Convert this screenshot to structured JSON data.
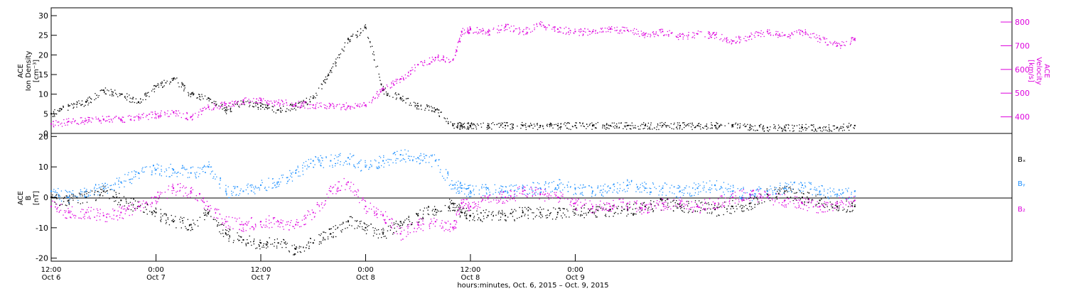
{
  "chart_data": [
    {
      "type": "scatter",
      "panel": "density-velocity",
      "ylabel": [
        "ACE",
        "Ion Density",
        "[cm⁻³]"
      ],
      "y2label": [
        "ACE",
        "Velocity",
        "[km/s]"
      ],
      "ylim": [
        0,
        32
      ],
      "y2lim": [
        330,
        860
      ],
      "yticks": [
        0,
        5,
        10,
        15,
        20,
        25,
        30
      ],
      "y2ticks": [
        400,
        500,
        600,
        700,
        800
      ],
      "series": [
        {
          "axis": "left",
          "color": "#000000",
          "x": [
            0,
            2,
            4,
            6,
            8,
            10,
            12,
            14,
            16,
            18,
            20,
            22,
            24,
            26,
            28,
            30,
            32,
            34,
            36,
            38,
            40,
            42,
            44,
            46,
            47,
            48,
            50,
            52,
            54,
            56,
            58,
            60,
            62,
            64,
            66,
            68,
            70,
            72,
            74,
            76,
            78,
            80,
            82,
            84,
            86,
            88,
            90,
            92
          ],
          "values": [
            5,
            7,
            8,
            11,
            10,
            8,
            12,
            14,
            10,
            9,
            6,
            8,
            7,
            6,
            7,
            9,
            16,
            24,
            27,
            11,
            9,
            7,
            6,
            2,
            2,
            2,
            2,
            2,
            2,
            2,
            2,
            2,
            2,
            2,
            2,
            2,
            2,
            2,
            2,
            2,
            2,
            1.5,
            1.5,
            1.5,
            1.5,
            1.5,
            1.5,
            2
          ]
        },
        {
          "axis": "right",
          "color": "#dd00dd",
          "x": [
            0,
            2,
            4,
            6,
            8,
            10,
            12,
            14,
            16,
            18,
            20,
            22,
            24,
            26,
            28,
            30,
            32,
            34,
            36,
            38,
            40,
            42,
            44,
            46,
            47,
            48,
            50,
            52,
            54,
            56,
            58,
            60,
            62,
            64,
            66,
            68,
            70,
            72,
            74,
            76,
            78,
            80,
            82,
            84,
            86,
            88,
            90,
            92
          ],
          "values": [
            370,
            380,
            385,
            390,
            390,
            400,
            410,
            420,
            400,
            440,
            455,
            470,
            470,
            460,
            455,
            450,
            450,
            445,
            450,
            520,
            560,
            620,
            650,
            640,
            760,
            770,
            760,
            780,
            760,
            790,
            770,
            760,
            760,
            770,
            765,
            750,
            760,
            740,
            750,
            745,
            720,
            740,
            760,
            745,
            760,
            730,
            700,
            730
          ]
        }
      ]
    },
    {
      "type": "scatter",
      "panel": "magnetic-field",
      "ylabel": [
        "ACE",
        "B",
        "[nT]"
      ],
      "ylim": [
        -21,
        21
      ],
      "yticks": [
        -20,
        -10,
        0,
        10,
        20
      ],
      "legend": [
        "Bₓ",
        "Bᵧ",
        "B₂"
      ],
      "series": [
        {
          "name": "Bx",
          "color": "#000000",
          "x": [
            0,
            2,
            4,
            6,
            8,
            10,
            12,
            14,
            16,
            18,
            20,
            22,
            24,
            26,
            28,
            30,
            32,
            34,
            36,
            38,
            40,
            42,
            44,
            46,
            47,
            48,
            50,
            52,
            54,
            56,
            58,
            60,
            62,
            64,
            66,
            68,
            70,
            72,
            74,
            76,
            78,
            80,
            82,
            84,
            86,
            88,
            90,
            92
          ],
          "values": [
            0,
            -1,
            0,
            2,
            -1,
            -3,
            -5,
            -8,
            -9,
            -5,
            -12,
            -14,
            -15,
            -15,
            -17,
            -15,
            -12,
            -8,
            -10,
            -12,
            -8,
            -6,
            -4,
            -2,
            -5,
            -6,
            -6,
            -6,
            -5,
            -5,
            -5,
            -4,
            -5,
            -4,
            -4,
            -3,
            -2,
            -3,
            -3,
            -4,
            -3,
            -2,
            1,
            2,
            0,
            -1,
            -3,
            -3
          ]
        },
        {
          "name": "By",
          "color": "#1e90ff",
          "x": [
            0,
            2,
            4,
            6,
            8,
            10,
            12,
            14,
            16,
            18,
            20,
            22,
            24,
            26,
            28,
            30,
            32,
            34,
            36,
            38,
            40,
            42,
            44,
            46,
            47,
            48,
            50,
            52,
            54,
            56,
            58,
            60,
            62,
            64,
            66,
            68,
            70,
            72,
            74,
            76,
            78,
            80,
            82,
            84,
            86,
            88,
            90,
            92
          ],
          "values": [
            2,
            0,
            2,
            3,
            5,
            8,
            9,
            9,
            8,
            10,
            2,
            2,
            4,
            5,
            8,
            12,
            12,
            13,
            10,
            12,
            14,
            13,
            12,
            4,
            3,
            2,
            3,
            2,
            3,
            3,
            4,
            3,
            2,
            3,
            4,
            3,
            3,
            2,
            3,
            4,
            2,
            1,
            2,
            3,
            4,
            2,
            1,
            2
          ]
        },
        {
          "name": "Bz",
          "color": "#dd00dd",
          "x": [
            0,
            2,
            4,
            6,
            8,
            10,
            12,
            14,
            16,
            18,
            20,
            22,
            24,
            26,
            28,
            30,
            32,
            34,
            36,
            38,
            40,
            42,
            44,
            46,
            47,
            48,
            50,
            52,
            54,
            56,
            58,
            60,
            62,
            64,
            66,
            68,
            70,
            72,
            74,
            76,
            78,
            80,
            82,
            84,
            86,
            88,
            90,
            92
          ],
          "values": [
            -3,
            -5,
            -5,
            -6,
            -5,
            -3,
            0,
            3,
            2,
            -3,
            -8,
            -9,
            -8,
            -8,
            -9,
            -5,
            2,
            5,
            -3,
            -6,
            -12,
            -9,
            -8,
            -10,
            -2,
            -3,
            0,
            0,
            2,
            1,
            0,
            -2,
            -3,
            -3,
            -2,
            -4,
            -2,
            -2,
            -3,
            -2,
            0,
            1,
            0,
            -1,
            -2,
            -3,
            -2,
            -1
          ]
        }
      ]
    }
  ],
  "xaxis": {
    "range_hours": [
      0,
      110
    ],
    "ticks": [
      {
        "h": 0,
        "time": "12:00",
        "date": "Oct 6"
      },
      {
        "h": 12,
        "time": "0:00",
        "date": "Oct 7"
      },
      {
        "h": 24,
        "time": "12:00",
        "date": "Oct 7"
      },
      {
        "h": 36,
        "time": "0:00",
        "date": "Oct 8"
      },
      {
        "h": 48,
        "time": "12:00",
        "date": "Oct 8"
      },
      {
        "h": 60,
        "time": "0:00",
        "date": "Oct 9"
      }
    ],
    "xlabel": "hours:minutes, Oct.  6, 2015 – Oct.  9, 2015"
  }
}
